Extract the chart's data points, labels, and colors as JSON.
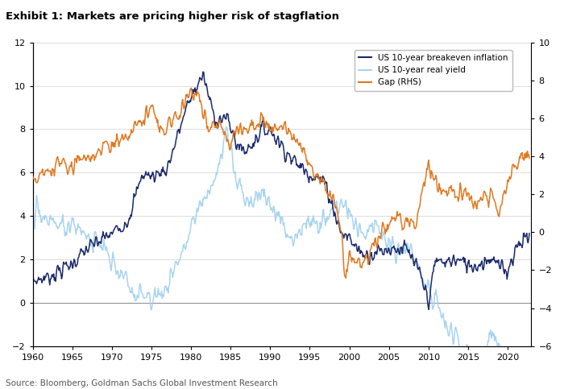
{
  "title": "Exhibit 1: Markets are pricing higher risk of stagflation",
  "source": "Source: Bloomberg, Goldman Sachs Global Investment Research",
  "legend": [
    "US 10-year breakeven inflation",
    "US 10-year real yield",
    "Gap (RHS)"
  ],
  "colors": {
    "breakeven": "#1b2a6b",
    "real_yield": "#a8d4f0",
    "gap": "#e07820"
  },
  "left_ylim": [
    -2,
    12
  ],
  "right_ylim": [
    -6,
    10
  ],
  "left_yticks": [
    -2,
    0,
    2,
    4,
    6,
    8,
    10,
    12
  ],
  "right_yticks": [
    -6,
    -4,
    -2,
    0,
    2,
    4,
    6,
    8,
    10
  ],
  "xlim": [
    1960,
    2023
  ],
  "xticks": [
    1960,
    1965,
    1970,
    1975,
    1980,
    1985,
    1990,
    1995,
    2000,
    2005,
    2010,
    2015,
    2020
  ],
  "background_color": "#ffffff",
  "grid_color": "#d0d0d0",
  "zero_line_color": "#888888"
}
